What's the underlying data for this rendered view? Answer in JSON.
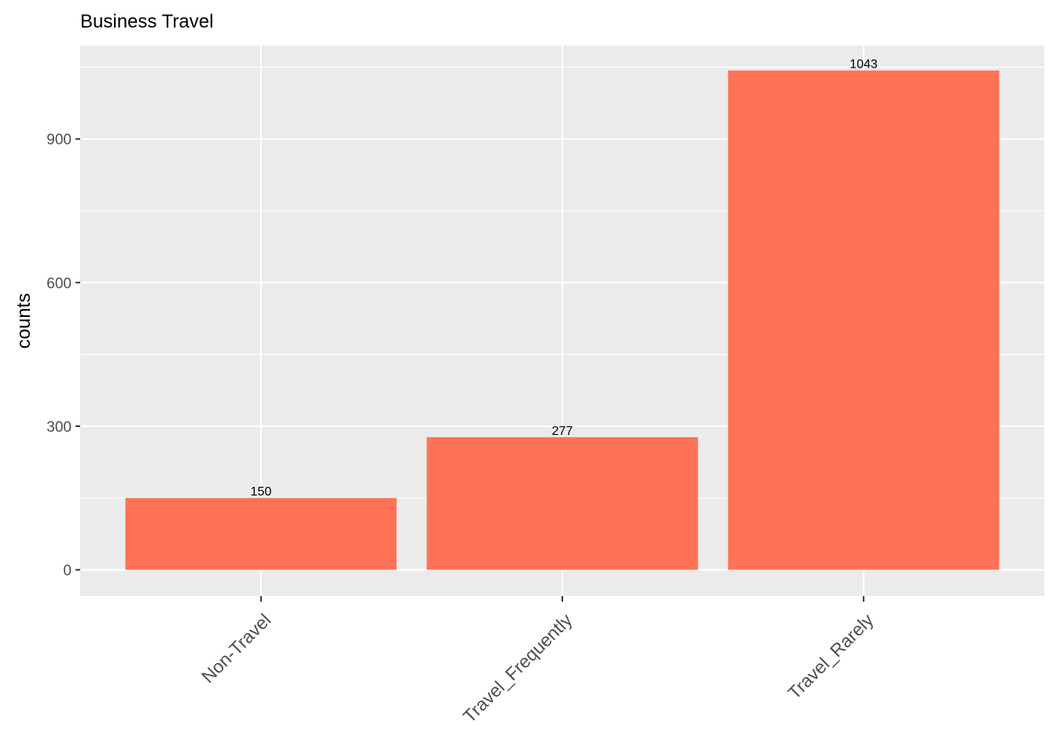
{
  "chart_data": {
    "type": "bar",
    "title": "Business Travel",
    "xlabel": "",
    "ylabel": "counts",
    "categories": [
      "Non-Travel",
      "Travel_Frequently",
      "Travel_Rarely"
    ],
    "values": [
      150,
      277,
      1043
    ],
    "data_labels": [
      "150",
      "277",
      "1043"
    ],
    "y_ticks": [
      0,
      300,
      600,
      900
    ],
    "y_tick_labels": [
      "0",
      "300",
      "600",
      "900"
    ],
    "ylim": [
      -55,
      1095
    ],
    "grid": true,
    "legend": "none",
    "colors": {
      "bar": "#FF7256",
      "panel": "#EBEBEB",
      "grid": "#FFFFFF",
      "tick_text": "#4D4D4D"
    }
  }
}
